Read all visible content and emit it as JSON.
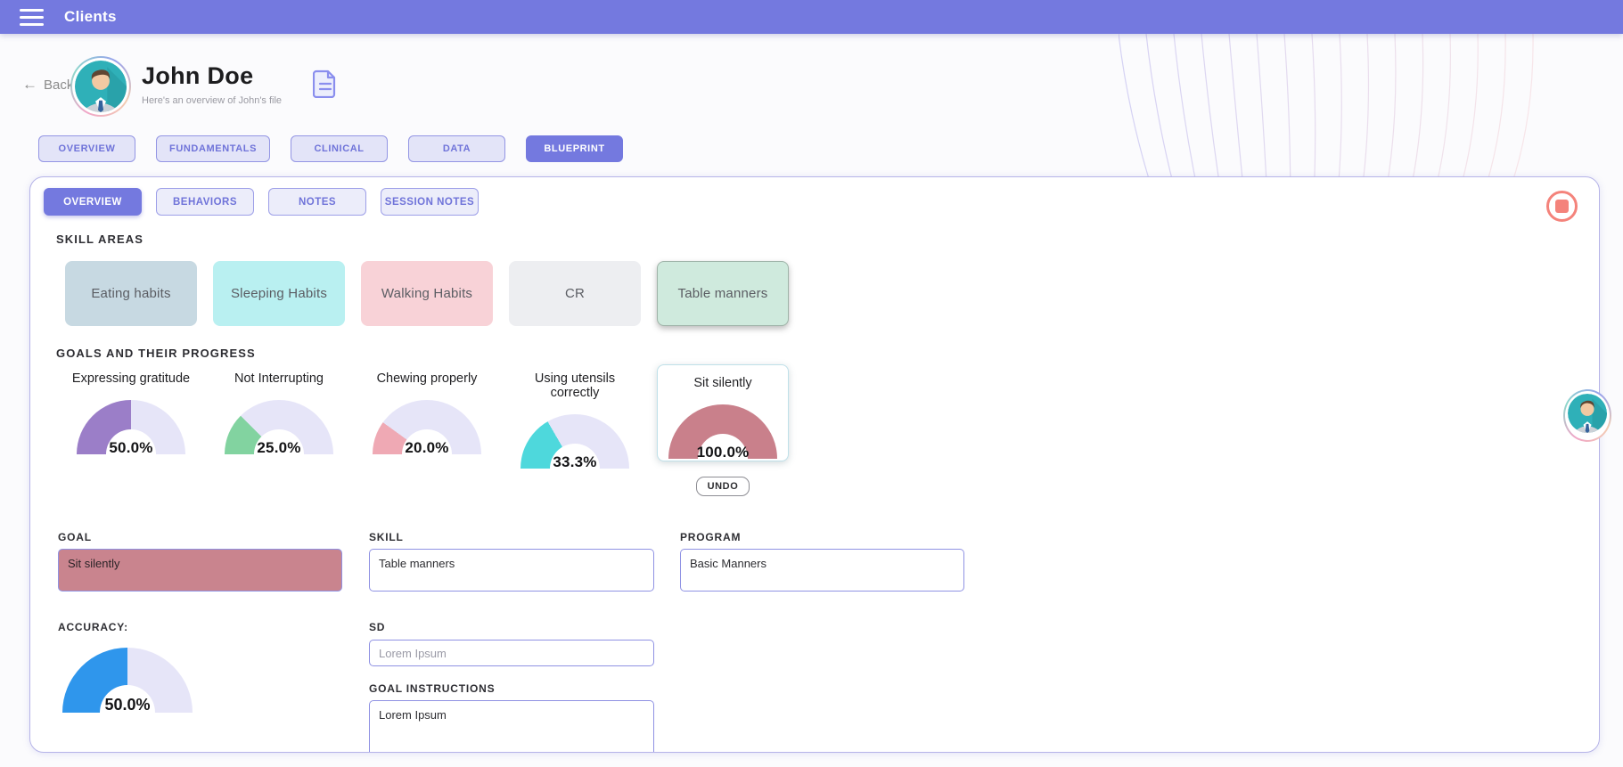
{
  "topbar": {
    "title": "Clients"
  },
  "header": {
    "back_label": "Back",
    "back_arrow": "←",
    "name": "John Doe",
    "subtitle": "Here's an overview of John's file"
  },
  "tabs": {
    "items": [
      {
        "label": "OVERVIEW",
        "active": false
      },
      {
        "label": "FUNDAMENTALS",
        "active": false
      },
      {
        "label": "CLINICAL",
        "active": false
      },
      {
        "label": "DATA",
        "active": false
      },
      {
        "label": "BLUEPRINT",
        "active": true
      }
    ]
  },
  "subtabs": {
    "items": [
      {
        "label": "OVERVIEW",
        "active": true
      },
      {
        "label": "BEHAVIORS",
        "active": false
      },
      {
        "label": "NOTES",
        "active": false
      },
      {
        "label": "SESSION NOTES",
        "active": false
      }
    ]
  },
  "skill_areas": {
    "heading": "SKILL AREAS",
    "items": [
      {
        "label": "Eating habits",
        "color": "#c7d9e2",
        "selected": false
      },
      {
        "label": "Sleeping Habits",
        "color": "#b9f0f1",
        "selected": false
      },
      {
        "label": "Walking Habits",
        "color": "#f8d2d7",
        "selected": false
      },
      {
        "label": "CR",
        "color": "#edeef1",
        "selected": false
      },
      {
        "label": "Table manners",
        "color": "#cfeadd",
        "selected": true
      }
    ]
  },
  "goals": {
    "heading": "GOALS AND THEIR PROGRESS",
    "undo_label": "UNDO",
    "items": [
      {
        "label": "Expressing gratitude",
        "percent": 50.0,
        "percent_label": "50.0%",
        "color": "#9b7ec8",
        "selected": false
      },
      {
        "label": "Not Interrupting",
        "percent": 25.0,
        "percent_label": "25.0%",
        "color": "#82d3a0",
        "selected": false
      },
      {
        "label": "Chewing properly",
        "percent": 20.0,
        "percent_label": "20.0%",
        "color": "#efa9b4",
        "selected": false
      },
      {
        "label": "Using utensils correctly",
        "percent": 33.3,
        "percent_label": "33.3%",
        "color": "#4ed8dc",
        "selected": false
      },
      {
        "label": "Sit silently",
        "percent": 100.0,
        "percent_label": "100.0%",
        "color": "#c9808b",
        "selected": true
      }
    ]
  },
  "form": {
    "goal": {
      "label": "GOAL",
      "value": "Sit silently",
      "bg": "#c9848e"
    },
    "skill": {
      "label": "SKILL",
      "value": "Table manners"
    },
    "program": {
      "label": "PROGRAM",
      "value": "Basic Manners"
    },
    "accuracy": {
      "label": "ACCURACY:",
      "percent": 50.0,
      "percent_label": "50.0%",
      "color": "#2f96ec"
    },
    "sd": {
      "label": "SD",
      "placeholder": "Lorem Ipsum"
    },
    "goal_instructions": {
      "label": "GOAL INSTRUCTIONS",
      "value": "Lorem Ipsum"
    }
  },
  "colors": {
    "accent": "#7479df",
    "tab_inactive_bg": "#e3e4f8",
    "tab_border": "#9395e4",
    "tab_text": "#6f73d9",
    "card_border": "#b6b4e8",
    "gauge_track": "#e6e5f8",
    "stop_icon": "#f4837b",
    "selected_goal_border": "#bfe0e9"
  }
}
